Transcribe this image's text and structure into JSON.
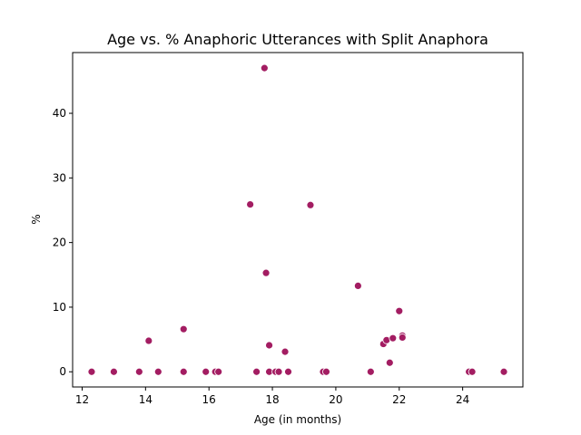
{
  "chart_data": {
    "type": "scatter",
    "title": "Age vs. % Anaphoric Utterances with Split Anaphora",
    "xlabel": "Age (in months)",
    "ylabel": "%",
    "xlim": [
      11.7,
      25.9
    ],
    "ylim": [
      -2.35,
      49.4
    ],
    "xticks": [
      12,
      14,
      16,
      18,
      20,
      22,
      24
    ],
    "yticks": [
      0,
      10,
      20,
      30,
      40
    ],
    "grid": false,
    "legend": "none",
    "marker_color": "#a31d62",
    "points": [
      {
        "x": 12.3,
        "y": 0
      },
      {
        "x": 13.0,
        "y": 0
      },
      {
        "x": 13.8,
        "y": 0
      },
      {
        "x": 14.1,
        "y": 4.8
      },
      {
        "x": 14.4,
        "y": 0
      },
      {
        "x": 15.2,
        "y": 0
      },
      {
        "x": 15.2,
        "y": 6.6
      },
      {
        "x": 15.9,
        "y": 0
      },
      {
        "x": 16.2,
        "y": 0
      },
      {
        "x": 16.3,
        "y": 0
      },
      {
        "x": 17.3,
        "y": 25.9
      },
      {
        "x": 17.5,
        "y": 0
      },
      {
        "x": 17.75,
        "y": 47.0
      },
      {
        "x": 17.8,
        "y": 15.3
      },
      {
        "x": 17.9,
        "y": 4.1
      },
      {
        "x": 17.9,
        "y": 0
      },
      {
        "x": 18.1,
        "y": 0
      },
      {
        "x": 18.2,
        "y": 0
      },
      {
        "x": 18.4,
        "y": 3.1
      },
      {
        "x": 18.5,
        "y": 0
      },
      {
        "x": 19.2,
        "y": 25.8
      },
      {
        "x": 19.6,
        "y": 0
      },
      {
        "x": 19.7,
        "y": 0
      },
      {
        "x": 20.7,
        "y": 13.3
      },
      {
        "x": 21.1,
        "y": 0
      },
      {
        "x": 21.5,
        "y": 4.3
      },
      {
        "x": 21.6,
        "y": 4.9
      },
      {
        "x": 21.7,
        "y": 1.4
      },
      {
        "x": 21.8,
        "y": 5.2
      },
      {
        "x": 22.0,
        "y": 9.4
      },
      {
        "x": 22.1,
        "y": 5.6
      },
      {
        "x": 22.1,
        "y": 5.3
      },
      {
        "x": 24.2,
        "y": 0
      },
      {
        "x": 24.3,
        "y": 0
      },
      {
        "x": 25.3,
        "y": 0
      }
    ]
  }
}
